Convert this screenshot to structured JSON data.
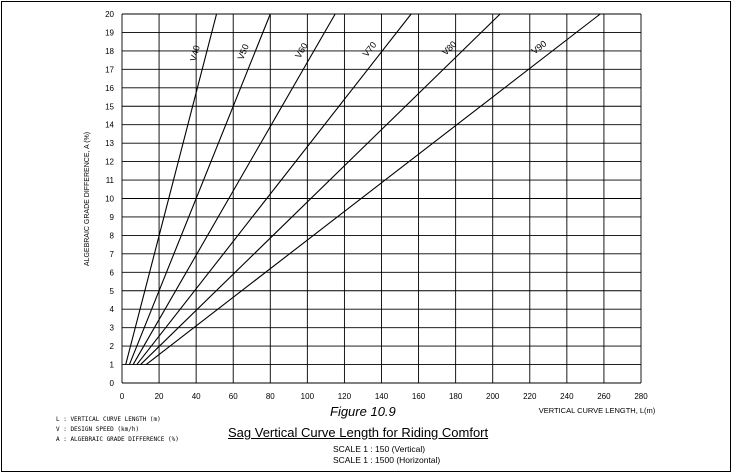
{
  "figure": {
    "number_label": "Figure 10.9",
    "title": "Sag Vertical Curve Length for Riding Comfort",
    "scales": [
      "SCALE  1 : 150 (Vertical)",
      "SCALE  1 : 1500 (Horizontal)"
    ]
  },
  "legend": [
    "L : VERTICAL CURVE LENGTH (m)",
    "V : DESIGN SPEED (km/h)",
    "A : ALGEBRAIC GRADE DIFFERENCE (%)"
  ],
  "chart_data": {
    "type": "line",
    "title": "Sag Vertical Curve Length for Riding Comfort",
    "xlabel": "VERTICAL CURVE LENGTH, L(m)",
    "ylabel": "ALGEBRAIC GRADE DIFFERENCE, A (%)",
    "xlim": [
      0,
      280
    ],
    "ylim": [
      0,
      20
    ],
    "xticks": [
      0,
      20,
      40,
      60,
      80,
      100,
      120,
      140,
      160,
      180,
      200,
      220,
      240,
      260,
      280
    ],
    "yticks": [
      0,
      1,
      2,
      3,
      4,
      5,
      6,
      7,
      8,
      9,
      10,
      11,
      12,
      13,
      14,
      15,
      16,
      17,
      18,
      19,
      20
    ],
    "grid": true,
    "series": [
      {
        "name": "V40",
        "x": [
          2,
          51
        ],
        "y": [
          1,
          20
        ]
      },
      {
        "name": "V50",
        "x": [
          4,
          80
        ],
        "y": [
          1,
          20
        ]
      },
      {
        "name": "V60",
        "x": [
          6,
          115
        ],
        "y": [
          1,
          20
        ]
      },
      {
        "name": "V70",
        "x": [
          8,
          156
        ],
        "y": [
          1,
          20
        ]
      },
      {
        "name": "V80",
        "x": [
          10,
          204
        ],
        "y": [
          1,
          20
        ]
      },
      {
        "name": "V90",
        "x": [
          13,
          258
        ],
        "y": [
          1,
          20
        ]
      }
    ]
  }
}
